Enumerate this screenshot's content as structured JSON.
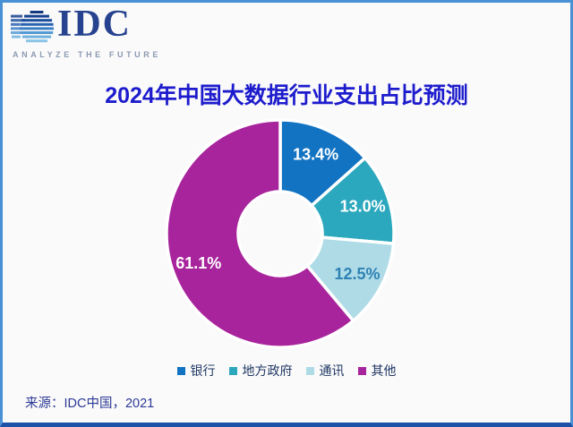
{
  "frame": {
    "border_color": "#4a90d5",
    "bottom_bar_color": "#1d50a7",
    "background": "#fbfafa"
  },
  "logo": {
    "text": "IDC",
    "tagline": "ANALYZE THE FUTURE",
    "text_color": "#27438f",
    "tagline_color": "#8b9ab2",
    "globe_icon": "striped-globe-icon",
    "globe_stripe_colors": [
      "#12377e",
      "#16418e",
      "#1c4e9e",
      "#2a63b2",
      "#3b7ec6",
      "#549ad4",
      "#6fb2de",
      "#8ac4e6",
      "#a5d3ec"
    ]
  },
  "title": {
    "text": "2024年中国大数据行业支出占比预测",
    "color": "#1d1ccd"
  },
  "chart_data": {
    "type": "pie",
    "subtype": "donut",
    "title": "2024年中国大数据行业支出占比预测",
    "units": "%",
    "start_angle_deg": 0,
    "direction": "clockwise",
    "legend_position": "bottom",
    "total": 100,
    "series": [
      {
        "name": "银行",
        "value": 13.4,
        "label": "13.4%",
        "color": "#1273c2",
        "label_color": "#ffffff"
      },
      {
        "name": "地方政府",
        "value": 13.0,
        "label": "13.0%",
        "color": "#2ba8bd",
        "label_color": "#ffffff"
      },
      {
        "name": "通讯",
        "value": 12.5,
        "label": "12.5%",
        "color": "#aedbe6",
        "label_color": "#2e82b4"
      },
      {
        "name": "其他",
        "value": 61.1,
        "label": "61.1%",
        "color": "#a8249c",
        "label_color": "#ffffff"
      }
    ]
  },
  "legend": {
    "text_color": "#1f3864"
  },
  "source": {
    "text": "来源：IDC中国，2021",
    "color": "#2b3a96"
  }
}
